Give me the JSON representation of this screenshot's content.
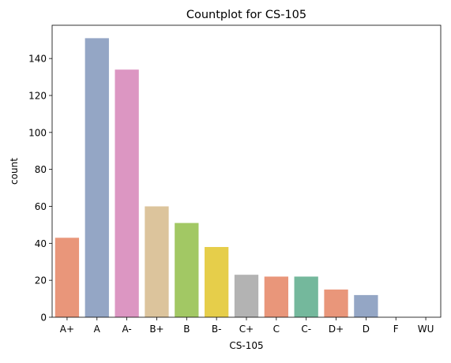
{
  "chart_data": {
    "type": "bar",
    "title": "Countplot for CS-105",
    "xlabel": "CS-105",
    "ylabel": "count",
    "categories": [
      "A+",
      "A",
      "A-",
      "B+",
      "B",
      "B-",
      "C+",
      "C",
      "C-",
      "D+",
      "D",
      "F",
      "WU"
    ],
    "values": [
      43,
      151,
      134,
      60,
      51,
      38,
      23,
      22,
      22,
      15,
      12,
      0,
      0
    ],
    "colors": [
      "#e9967a",
      "#94a6c5",
      "#dc96c2",
      "#dcc49c",
      "#a2c864",
      "#e6ce4a",
      "#b3b3b3",
      "#e9967a",
      "#74b89c",
      "#e9967a",
      "#94a6c5",
      "#dc96c2",
      "#dcc49c"
    ],
    "ylim": [
      0,
      158
    ],
    "yticks": [
      0,
      20,
      40,
      60,
      80,
      100,
      120,
      140
    ],
    "grid": false,
    "legend": "none"
  }
}
